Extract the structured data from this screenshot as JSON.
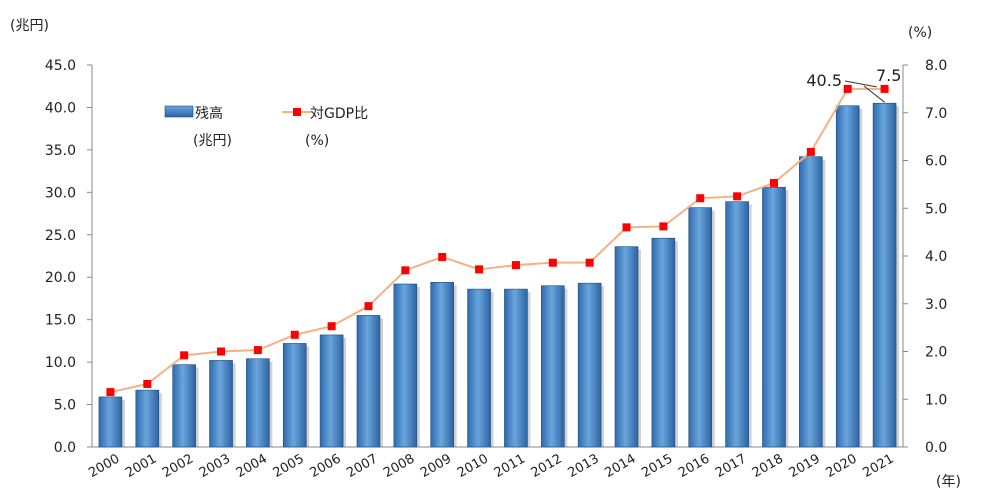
{
  "chart_data": {
    "type": "bar",
    "categories": [
      "2000",
      "2001",
      "2002",
      "2003",
      "2004",
      "2005",
      "2006",
      "2007",
      "2008",
      "2009",
      "2010",
      "2011",
      "2012",
      "2013",
      "2014",
      "2015",
      "2016",
      "2017",
      "2018",
      "2019",
      "2020",
      "2021"
    ],
    "series": [
      {
        "name": "残高",
        "name_unit": "(兆円)",
        "type": "bar",
        "axis": "left",
        "color": "#4a86c6",
        "values": [
          5.9,
          6.7,
          9.7,
          10.2,
          10.4,
          12.2,
          13.2,
          15.5,
          19.2,
          19.4,
          18.6,
          18.6,
          19.0,
          19.3,
          23.6,
          24.6,
          28.2,
          28.9,
          30.6,
          34.2,
          40.2,
          40.5
        ]
      },
      {
        "name": "対GDP比",
        "name_unit": "(%)",
        "type": "line",
        "axis": "right",
        "line_color": "#f4b183",
        "marker_color": "#ff0000",
        "values": [
          1.15,
          1.32,
          1.92,
          2.0,
          2.03,
          2.35,
          2.53,
          2.95,
          3.7,
          3.98,
          3.72,
          3.81,
          3.86,
          3.86,
          4.6,
          4.62,
          5.21,
          5.25,
          5.53,
          6.18,
          7.5,
          7.5
        ]
      }
    ],
    "left_axis": {
      "label": "(兆円)",
      "ylim": [
        0,
        45
      ],
      "ticks": [
        "0.0",
        "5.0",
        "10.0",
        "15.0",
        "20.0",
        "25.0",
        "30.0",
        "35.0",
        "40.0",
        "45.0"
      ]
    },
    "right_axis": {
      "label": "(%)",
      "ylim": [
        0,
        8
      ],
      "ticks": [
        "0.0",
        "1.0",
        "2.0",
        "3.0",
        "4.0",
        "5.0",
        "6.0",
        "7.0",
        "8.0"
      ]
    },
    "x_axis_label": "(年)",
    "annotations": [
      {
        "text": "40.5",
        "series": "残高",
        "category": "2021"
      },
      {
        "text": "7.5",
        "series": "対GDP比",
        "category": "2021"
      }
    ],
    "legend": {
      "position": "top-left"
    },
    "grid": false
  }
}
